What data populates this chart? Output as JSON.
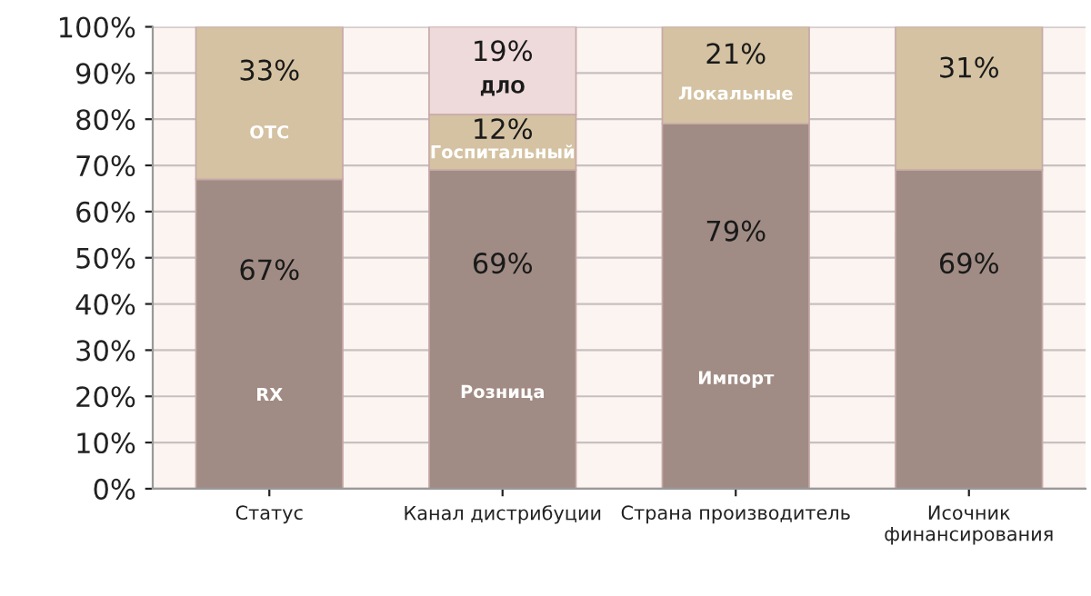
{
  "chart_data": {
    "type": "bar",
    "stacked": true,
    "categories": [
      "Статус",
      "Канал дистрибуции",
      "Страна производитель",
      "Исочник\nфинансирования"
    ],
    "series": [
      {
        "color": "#a08c84",
        "values": [
          67,
          69,
          79,
          69
        ],
        "value_labels": [
          "67%\nRX",
          "69%\nРозница",
          "79%\nИмпорт",
          "69%"
        ]
      },
      {
        "color": "#d4c2a2",
        "values": [
          33,
          12,
          21,
          31
        ],
        "value_labels": [
          "33%\nOTC",
          "12%\nГоспитальный",
          "21%\nЛокальные",
          "31%"
        ]
      },
      {
        "color": "#eedada",
        "values": [
          null,
          19,
          null,
          null
        ],
        "value_labels": [
          null,
          "19%\nДЛО",
          null,
          null
        ]
      }
    ],
    "ylim": [
      0,
      100
    ],
    "yticks": [
      {
        "value": 0,
        "label": "0%"
      },
      {
        "value": 10,
        "label": "10%"
      },
      {
        "value": 20,
        "label": "20%"
      },
      {
        "value": 30,
        "label": "30%"
      },
      {
        "value": 40,
        "label": "40%"
      },
      {
        "value": 50,
        "label": "50%"
      },
      {
        "value": 60,
        "label": "60%"
      },
      {
        "value": 70,
        "label": "70%"
      },
      {
        "value": 80,
        "label": "80%"
      },
      {
        "value": 90,
        "label": "90%"
      },
      {
        "value": 100,
        "label": "100%"
      }
    ],
    "grid": "y",
    "legend": false
  }
}
